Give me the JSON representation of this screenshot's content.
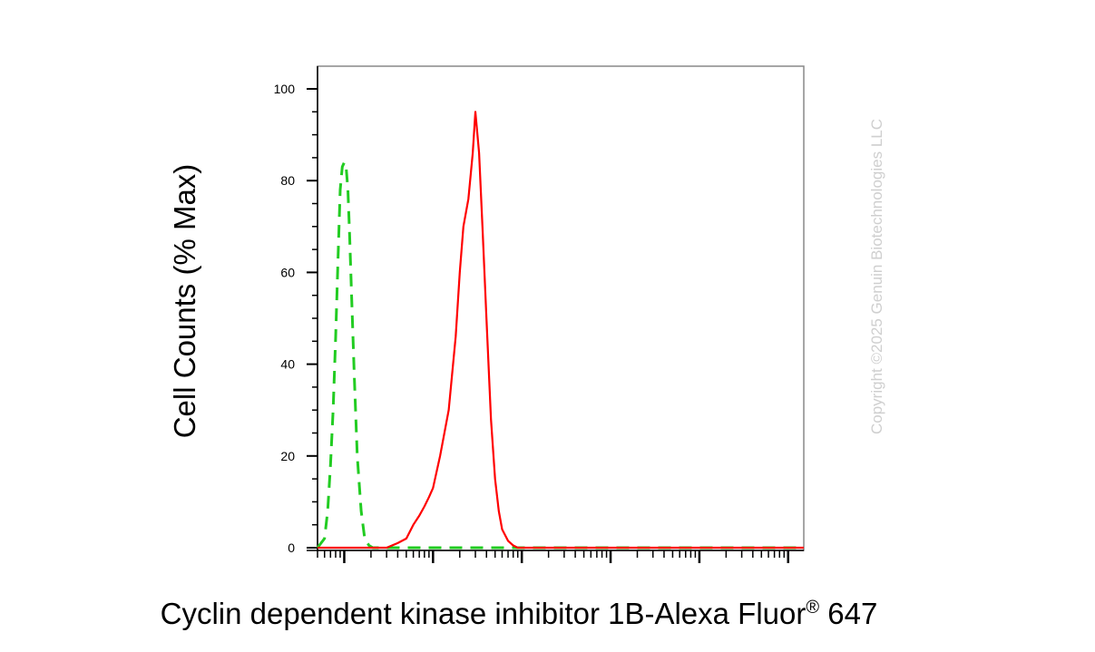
{
  "chart_data": {
    "type": "line",
    "title": "",
    "ylabel": "Cell Counts (% Max)",
    "xlabel_main": "Cyclin dependent kinase inhibitor 1B-Alexa Fluor",
    "xlabel_mark": "®",
    "xlabel_end": " 647",
    "watermark": "Copyright ©2025 Genuin Biotechnologies LLC",
    "x_scale": "log",
    "xlim": [
      0.5,
      150000
    ],
    "ylim": [
      0,
      105
    ],
    "y_ticks": [
      0,
      20,
      40,
      60,
      80,
      100
    ],
    "y_tick_labels": [
      "0",
      "20",
      "40",
      "60",
      "80",
      "100"
    ],
    "x_tick_labels_shown": false,
    "grid": false,
    "legend": "none",
    "series": [
      {
        "color": "#22cc22",
        "style": "dashed",
        "x": [
          0.5,
          0.6,
          0.65,
          0.7,
          0.75,
          0.8,
          0.85,
          0.9,
          0.95,
          1.0,
          1.05,
          1.1,
          1.15,
          1.2,
          1.3,
          1.4,
          1.55,
          1.7,
          1.9,
          2.1,
          2.5,
          3.0,
          5,
          10,
          100,
          1000,
          10000,
          150000
        ],
        "y": [
          0,
          2,
          8,
          18,
          30,
          46,
          63,
          78,
          83,
          84,
          83,
          78,
          68,
          57,
          37,
          20,
          8,
          2,
          0.5,
          0,
          0,
          0,
          0,
          0,
          0,
          0,
          0,
          0
        ]
      },
      {
        "color": "#ff0000",
        "style": "solid",
        "x": [
          0.5,
          1,
          2,
          3,
          4,
          5,
          6,
          7,
          8,
          9,
          10,
          12,
          15,
          18,
          20,
          22,
          25,
          28,
          30,
          33,
          36,
          40,
          45,
          50,
          55,
          60,
          70,
          80,
          90,
          100,
          130,
          1000,
          10000,
          150000
        ],
        "y": [
          0,
          0,
          0,
          0,
          1,
          2,
          5,
          7,
          9,
          11,
          13,
          20,
          30,
          46,
          60,
          70,
          76,
          86,
          95,
          86,
          70,
          50,
          28,
          15,
          8,
          4,
          1.5,
          0.5,
          0,
          0,
          0,
          0,
          0,
          0
        ]
      }
    ]
  }
}
